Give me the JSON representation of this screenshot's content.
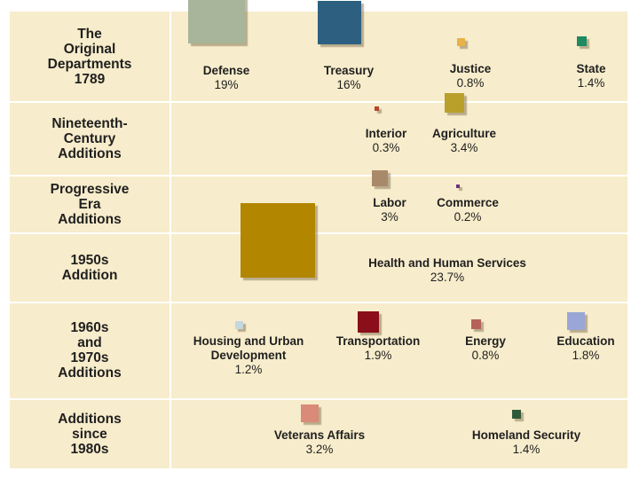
{
  "rows": [
    {
      "era": "The\nOriginal\nDepartments\n1789",
      "departments": [
        {
          "name": "Defense",
          "pct": "19%",
          "value": 19,
          "color": "#a8b59a"
        },
        {
          "name": "Treasury",
          "pct": "16%",
          "value": 16,
          "color": "#2d6080"
        },
        {
          "name": "Justice",
          "pct": "0.8%",
          "value": 0.8,
          "color": "#e8b24a"
        },
        {
          "name": "State",
          "pct": "1.4%",
          "value": 1.4,
          "color": "#1f8a62"
        }
      ]
    },
    {
      "era": "Nineteenth-\nCentury\nAdditions",
      "departments": [
        {
          "name": "Interior",
          "pct": "0.3%",
          "value": 0.3,
          "color": "#b5472e"
        },
        {
          "name": "Agriculture",
          "pct": "3.4%",
          "value": 3.4,
          "color": "#b8a02a"
        }
      ]
    },
    {
      "era": "Progressive\nEra\nAdditions",
      "departments": [
        {
          "name": "Labor",
          "pct": "3%",
          "value": 3,
          "color": "#a88a6a"
        },
        {
          "name": "Commerce",
          "pct": "0.2%",
          "value": 0.2,
          "color": "#6a2f7a"
        }
      ]
    },
    {
      "era": "1950s\nAddition",
      "departments": [
        {
          "name": "Health and Human Services",
          "pct": "23.7%",
          "value": 23.7,
          "color": "#b38600"
        }
      ]
    },
    {
      "era": "1960s\nand\n1970s\nAdditions",
      "departments": [
        {
          "name": "Housing and Urban\nDevelopment",
          "pct": "1.2%",
          "value": 1.2,
          "color": "#c6d6e0"
        },
        {
          "name": "Transportation",
          "pct": "1.9%",
          "value": 1.9,
          "color": "#8a0f1a"
        },
        {
          "name": "Energy",
          "pct": "0.8%",
          "value": 0.8,
          "color": "#b5635a"
        },
        {
          "name": "Education",
          "pct": "1.8%",
          "value": 1.8,
          "color": "#9aa6d6"
        }
      ]
    },
    {
      "era": "Additions\nsince\n1980s",
      "departments": [
        {
          "name": "Veterans Affairs",
          "pct": "3.2%",
          "value": 3.2,
          "color": "#d98a78"
        },
        {
          "name": "Homeland Security",
          "pct": "1.4%",
          "value": 1.4,
          "color": "#2f5a3a"
        }
      ]
    }
  ]
}
